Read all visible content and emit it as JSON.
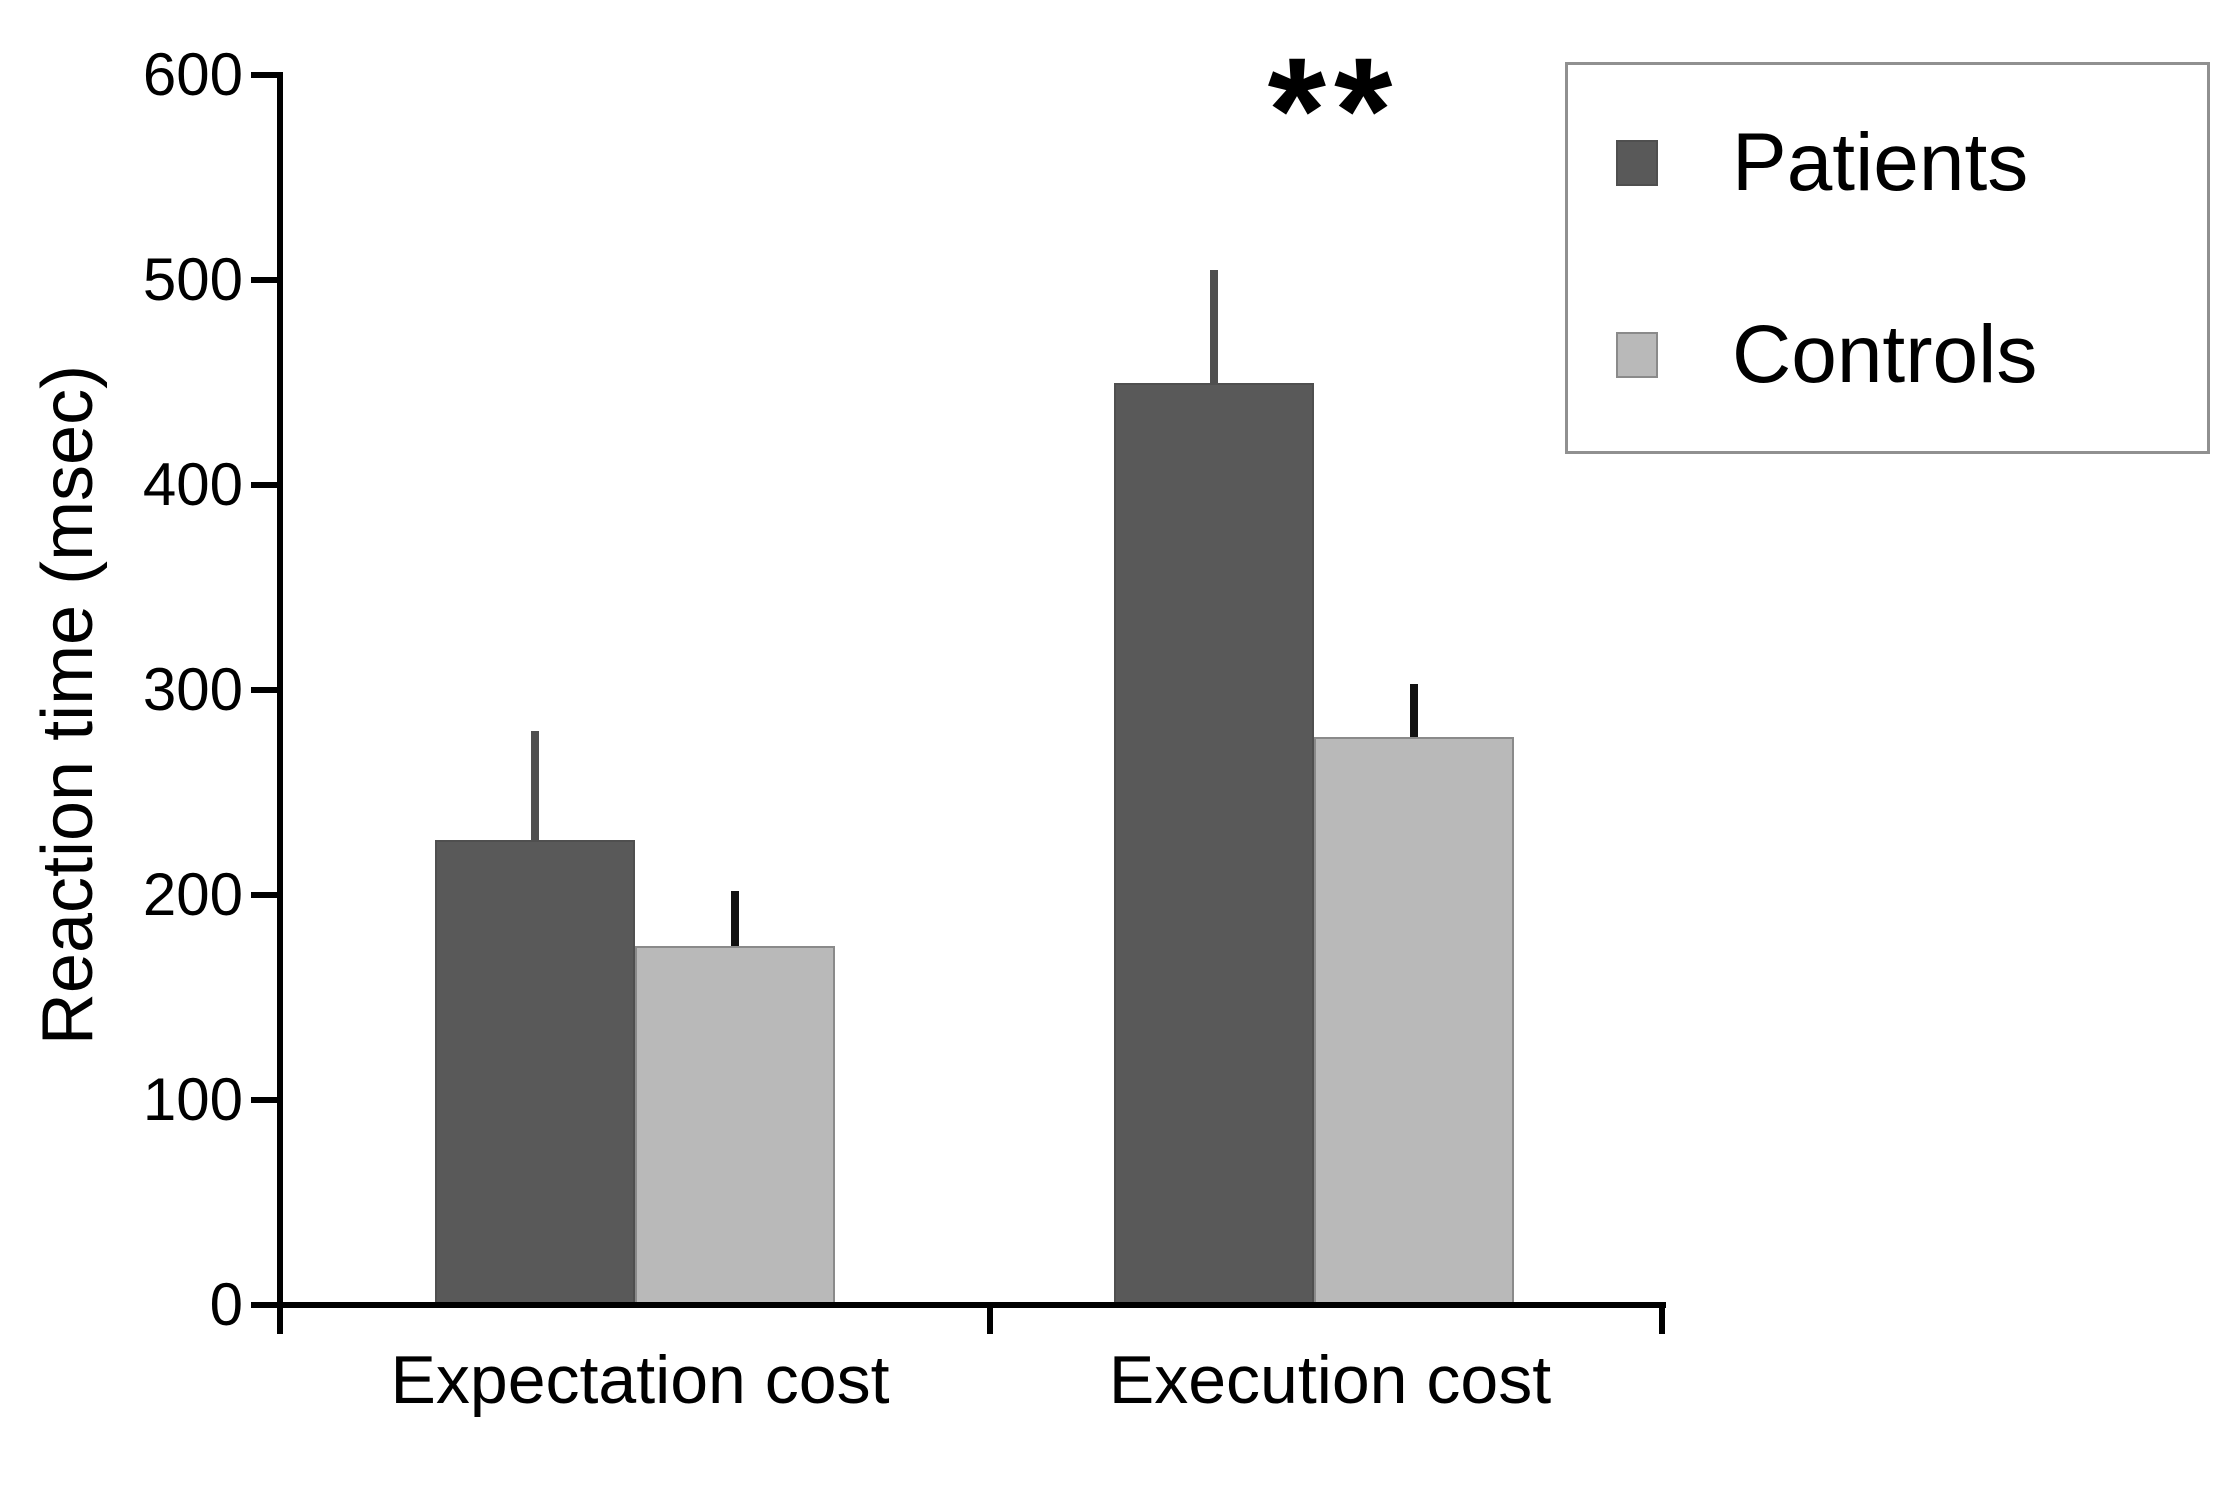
{
  "chart_data": {
    "type": "bar",
    "title": "",
    "ylabel": "Reaction time (msec)",
    "categories": [
      "Expectation cost",
      "Execution cost"
    ],
    "series": [
      {
        "name": "Patients",
        "color": "#595959",
        "edge_color": "#4f4f4f",
        "error_color": "#4f4f4f",
        "values": [
          227,
          450
        ],
        "errors_plus": [
          53,
          55
        ]
      },
      {
        "name": "Controls",
        "color": "#b9b9b9",
        "edge_color": "#8a8a8a",
        "error_color": "#111111",
        "values": [
          175,
          277
        ],
        "errors_plus": [
          27,
          26
        ]
      }
    ],
    "ylim": [
      0,
      600
    ],
    "yticks": [
      0,
      100,
      200,
      300,
      400,
      500,
      600
    ],
    "grid": false,
    "legend_position": "top-right",
    "annotations": [
      {
        "text": "**",
        "category": "Execution cost"
      }
    ]
  }
}
